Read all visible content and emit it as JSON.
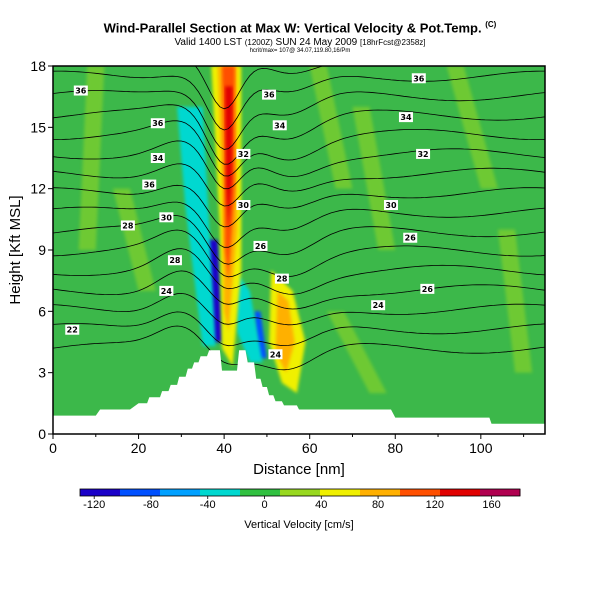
{
  "header": {
    "title": "Wind-Parallel Section at Max W: Vertical Velocity & Pot.Temp.",
    "title_mark": "(C)",
    "subtitle_main": "Valid 1400 LST",
    "subtitle_small1": "(1200Z)",
    "subtitle_date": "SUN 24 May 2009",
    "subtitle_small2": "[18hrFcst@2358z]",
    "info_line": "hcrit/max= 107@ 34.07,119.80,16/Pm"
  },
  "colors": {
    "background_green": "#3cb84a",
    "terrain": "#ffffff",
    "contour": "#000000",
    "colorbar": [
      "#1a00c8",
      "#0050ff",
      "#00a0ff",
      "#00d8d0",
      "#30c040",
      "#98d820",
      "#f0f000",
      "#ffb000",
      "#ff5000",
      "#e00000",
      "#b00050"
    ]
  },
  "chart_data": {
    "type": "heatmap",
    "xlabel": "Distance [nm]",
    "ylabel": "Height [Kft MSL]",
    "xlim": [
      0,
      115
    ],
    "ylim": [
      0,
      18
    ],
    "x_ticks": [
      "0",
      "20",
      "40",
      "60",
      "80",
      "100"
    ],
    "y_ticks": [
      "0",
      "3",
      "6",
      "9",
      "12",
      "15",
      "18"
    ],
    "colorbar": {
      "label": "Vertical Velocity [cm/s]",
      "range": [
        -130,
        180
      ],
      "tick_labels": [
        "-120",
        "-80",
        "-40",
        "0",
        "40",
        "80",
        "120",
        "160"
      ]
    },
    "terrain_profile": [
      [
        0,
        0.9
      ],
      [
        10,
        0.9
      ],
      [
        11,
        1.2
      ],
      [
        18,
        1.2
      ],
      [
        20,
        1.5
      ],
      [
        22,
        1.5
      ],
      [
        22.5,
        1.8
      ],
      [
        25,
        1.8
      ],
      [
        25.5,
        2.1
      ],
      [
        27,
        2.1
      ],
      [
        27.5,
        2.4
      ],
      [
        29,
        2.4
      ],
      [
        29.5,
        2.8
      ],
      [
        31,
        2.8
      ],
      [
        31.5,
        3.2
      ],
      [
        32.5,
        3.2
      ],
      [
        33,
        3.5
      ],
      [
        34,
        3.5
      ],
      [
        34.5,
        3.8
      ],
      [
        36,
        3.8
      ],
      [
        36.5,
        4.1
      ],
      [
        39,
        4.1
      ],
      [
        39.5,
        3.1
      ],
      [
        43,
        3.1
      ],
      [
        43.5,
        4.1
      ],
      [
        45,
        4.1
      ],
      [
        45.5,
        3.5
      ],
      [
        47,
        3.5
      ],
      [
        47.5,
        2.7
      ],
      [
        48.5,
        2.7
      ],
      [
        49,
        2.3
      ],
      [
        50,
        2.3
      ],
      [
        50.5,
        1.9
      ],
      [
        51.5,
        1.9
      ],
      [
        52,
        1.6
      ],
      [
        53.5,
        1.6
      ],
      [
        54,
        1.4
      ],
      [
        57,
        1.4
      ],
      [
        57.5,
        1.2
      ],
      [
        79,
        1.2
      ],
      [
        80,
        0.8
      ],
      [
        102,
        0.8
      ],
      [
        102.5,
        0.5
      ],
      [
        115,
        0.5
      ]
    ],
    "contour_labels": [
      {
        "text": "36",
        "x": 6.5,
        "y": 16.8
      },
      {
        "text": "36",
        "x": 24.5,
        "y": 15.2
      },
      {
        "text": "34",
        "x": 24.5,
        "y": 13.5
      },
      {
        "text": "36",
        "x": 22.5,
        "y": 12.2
      },
      {
        "text": "30",
        "x": 26.5,
        "y": 10.6
      },
      {
        "text": "28",
        "x": 17.5,
        "y": 10.2
      },
      {
        "text": "28",
        "x": 28.5,
        "y": 8.5
      },
      {
        "text": "24",
        "x": 26.5,
        "y": 7.0
      },
      {
        "text": "22",
        "x": 4.5,
        "y": 5.1
      },
      {
        "text": "32",
        "x": 44.5,
        "y": 13.7
      },
      {
        "text": "30",
        "x": 44.5,
        "y": 11.2
      },
      {
        "text": "26",
        "x": 48.5,
        "y": 9.2
      },
      {
        "text": "28",
        "x": 53.5,
        "y": 7.6
      },
      {
        "text": "24",
        "x": 52.0,
        "y": 3.9
      },
      {
        "text": "36",
        "x": 50.5,
        "y": 16.6
      },
      {
        "text": "34",
        "x": 53.0,
        "y": 15.1
      },
      {
        "text": "36",
        "x": 85.5,
        "y": 17.4
      },
      {
        "text": "34",
        "x": 82.5,
        "y": 15.5
      },
      {
        "text": "32",
        "x": 86.5,
        "y": 13.7
      },
      {
        "text": "30",
        "x": 79.0,
        "y": 11.2
      },
      {
        "text": "26",
        "x": 83.5,
        "y": 9.6
      },
      {
        "text": "26",
        "x": 87.5,
        "y": 7.1
      },
      {
        "text": "24",
        "x": 76.0,
        "y": 6.3
      }
    ],
    "velocity_regions": [
      {
        "level": "strong_down",
        "value": -120,
        "color": "#1a00c8",
        "poly": [
          [
            36,
            9.5
          ],
          [
            38.5,
            9.5
          ],
          [
            39.5,
            4.5
          ],
          [
            37,
            4.5
          ]
        ]
      },
      {
        "level": "down",
        "value": -80,
        "color": "#0050ff",
        "poly": [
          [
            47,
            6
          ],
          [
            48.5,
            6
          ],
          [
            50,
            3.7
          ],
          [
            47.5,
            3.7
          ]
        ]
      },
      {
        "level": "weak_down",
        "value": -40,
        "color": "#00d8d0",
        "poly": [
          [
            29,
            16
          ],
          [
            35,
            16
          ],
          [
            38,
            4.3
          ],
          [
            35,
            4.3
          ],
          [
            31,
            11
          ]
        ]
      },
      {
        "level": "weak_down",
        "value": -40,
        "color": "#00d8d0",
        "poly": [
          [
            42.5,
            8
          ],
          [
            46,
            7
          ],
          [
            49,
            3.5
          ],
          [
            46,
            3.5
          ],
          [
            43,
            5
          ]
        ]
      },
      {
        "level": "up",
        "value": 60,
        "color": "#f0f000",
        "poly": [
          [
            37,
            18
          ],
          [
            44,
            18
          ],
          [
            44,
            8
          ],
          [
            42,
            3.3
          ],
          [
            39.5,
            4.2
          ],
          [
            39,
            10
          ]
        ]
      },
      {
        "level": "up",
        "value": 60,
        "color": "#f0f000",
        "poly": [
          [
            51,
            8
          ],
          [
            56,
            7
          ],
          [
            59,
            4.5
          ],
          [
            57,
            2
          ],
          [
            53.5,
            2.5
          ],
          [
            50.5,
            4.5
          ]
        ]
      },
      {
        "level": "strong_up",
        "value": 100,
        "color": "#ffb000",
        "poly": [
          [
            38.5,
            18
          ],
          [
            43,
            18
          ],
          [
            43,
            10
          ],
          [
            41,
            5
          ],
          [
            40,
            6
          ],
          [
            39.5,
            12
          ]
        ]
      },
      {
        "level": "strong_up",
        "value": 100,
        "color": "#ffb000",
        "poly": [
          [
            52.5,
            7
          ],
          [
            55,
            6.5
          ],
          [
            56.5,
            4.5
          ],
          [
            54.5,
            3
          ],
          [
            52,
            4
          ]
        ]
      },
      {
        "level": "very_strong_up",
        "value": 140,
        "color": "#ff5000",
        "poly": [
          [
            39.5,
            18
          ],
          [
            42.5,
            18
          ],
          [
            42.5,
            12
          ],
          [
            41,
            7.5
          ],
          [
            40.2,
            9
          ],
          [
            40,
            14
          ]
        ]
      },
      {
        "level": "max_up",
        "value": 170,
        "color": "#e00000",
        "poly": [
          [
            40.2,
            17
          ],
          [
            42,
            17
          ],
          [
            41.8,
            12.5
          ],
          [
            41,
            10
          ],
          [
            40.5,
            12
          ]
        ]
      }
    ]
  }
}
